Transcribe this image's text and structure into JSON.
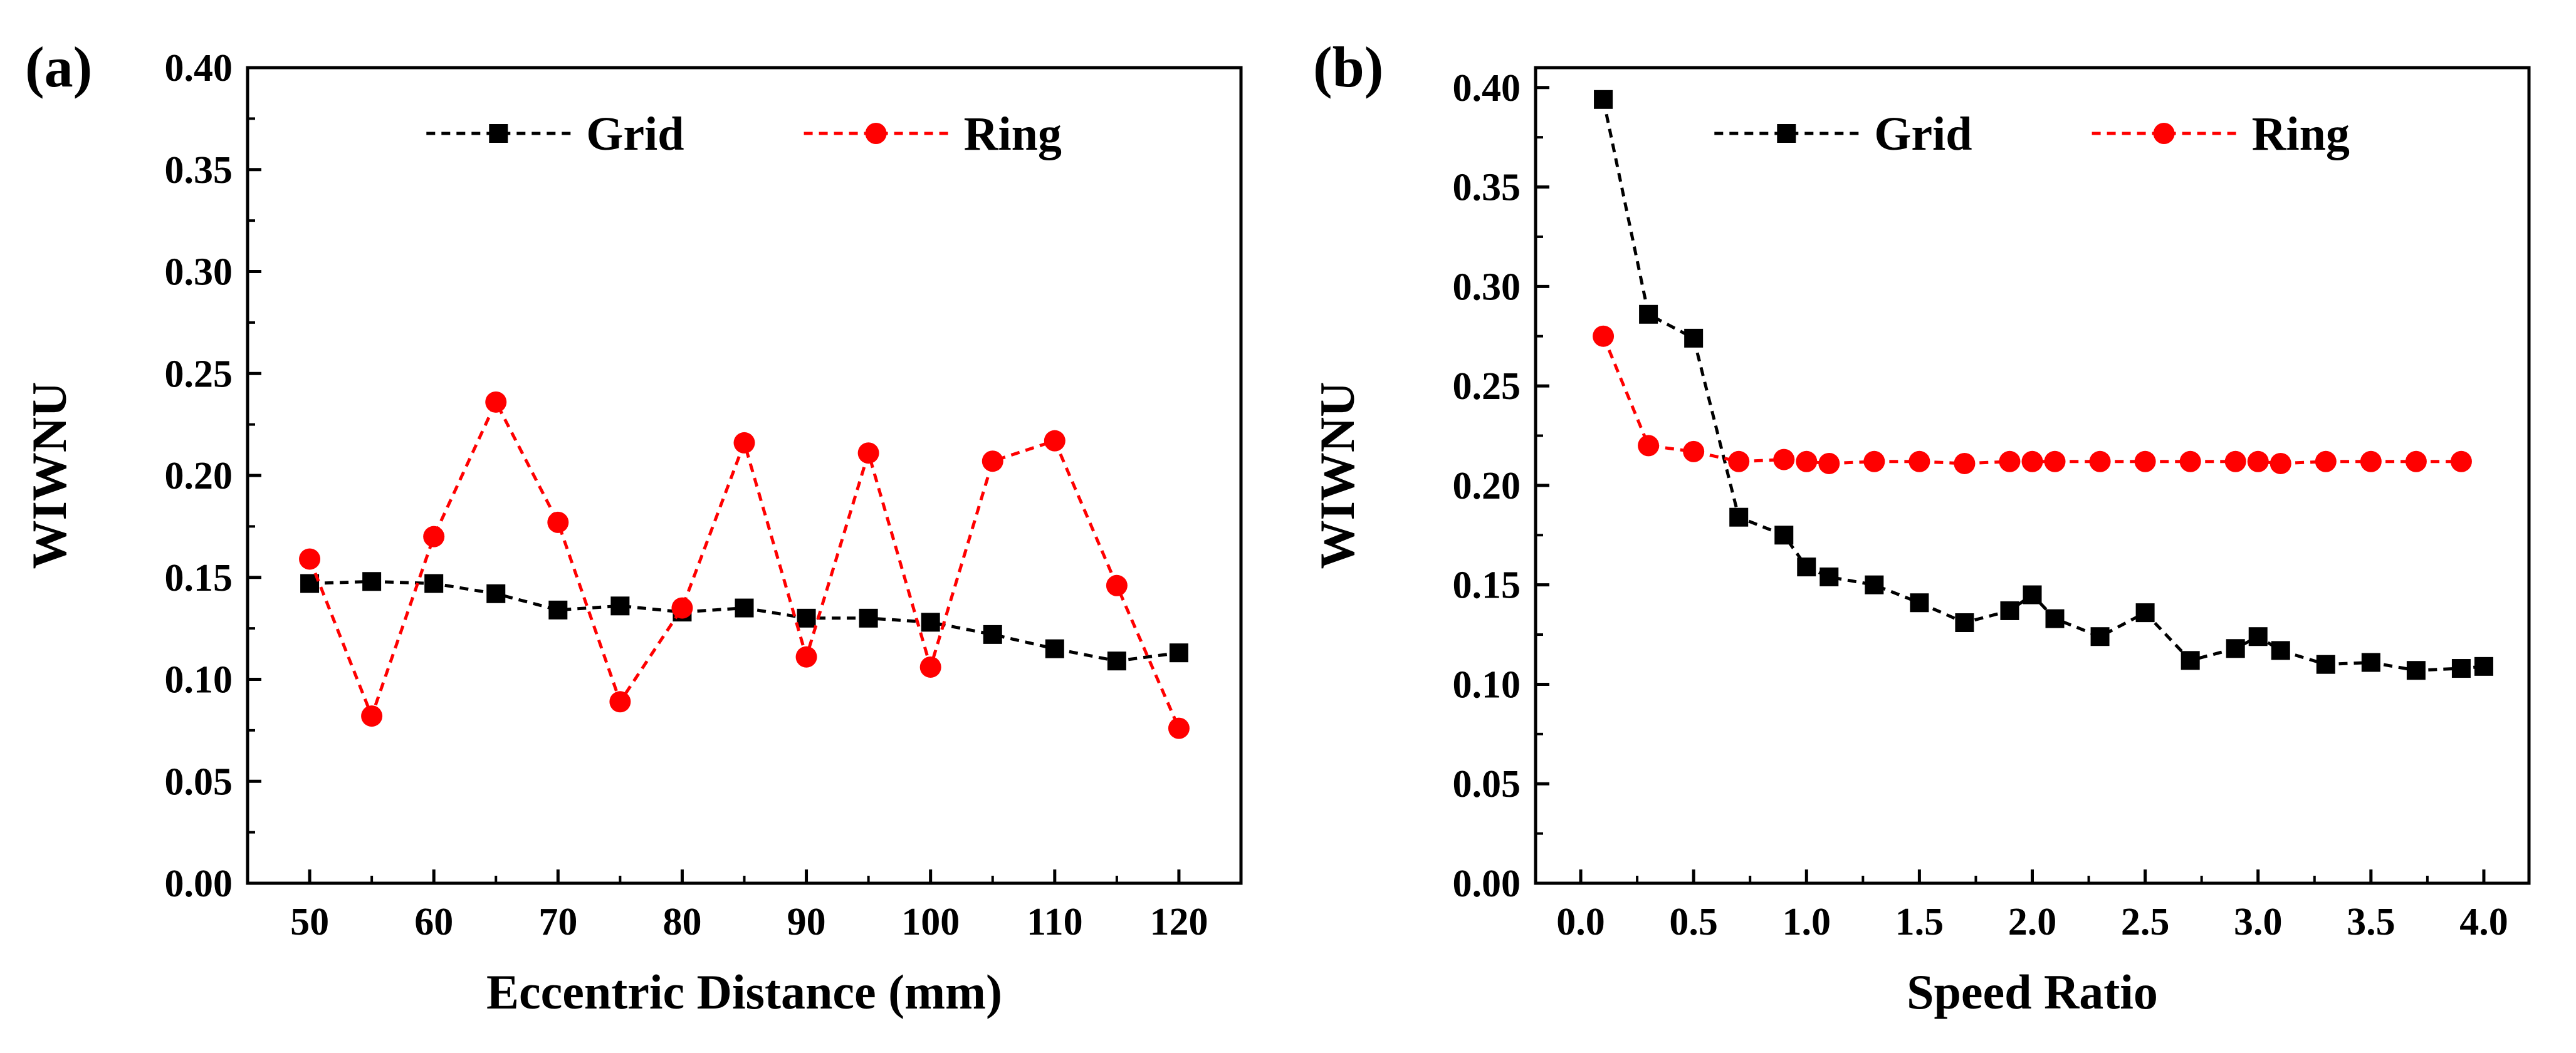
{
  "chart_data": [
    {
      "type": "line",
      "panel_label": "(a)",
      "xlabel": "Eccentric Distance (mm)",
      "ylabel": "WIWNU",
      "xlim": [
        45,
        125
      ],
      "ylim": [
        0.0,
        0.4
      ],
      "xticks": [
        50,
        60,
        70,
        80,
        90,
        100,
        110,
        120
      ],
      "xtick_labels": [
        "50",
        "60",
        "70",
        "80",
        "90",
        "100",
        "110",
        "120"
      ],
      "yticks": [
        0.0,
        0.05,
        0.1,
        0.15,
        0.2,
        0.25,
        0.3,
        0.35,
        0.4
      ],
      "ytick_labels": [
        "0.00",
        "0.05",
        "0.10",
        "0.15",
        "0.20",
        "0.25",
        "0.30",
        "0.35",
        "0.40"
      ],
      "legend_position": "top-center",
      "series": [
        {
          "name": "Grid",
          "color": "#000000",
          "marker": "square",
          "x": [
            50,
            55,
            60,
            65,
            70,
            75,
            80,
            85,
            90,
            95,
            100,
            105,
            110,
            115,
            120
          ],
          "y": [
            0.147,
            0.148,
            0.147,
            0.142,
            0.134,
            0.136,
            0.133,
            0.135,
            0.13,
            0.13,
            0.128,
            0.122,
            0.115,
            0.109,
            0.113
          ]
        },
        {
          "name": "Ring",
          "color": "#ff0000",
          "marker": "circle",
          "x": [
            50,
            55,
            60,
            65,
            70,
            75,
            80,
            85,
            90,
            95,
            100,
            105,
            110,
            115,
            120
          ],
          "y": [
            0.159,
            0.082,
            0.17,
            0.236,
            0.177,
            0.089,
            0.135,
            0.216,
            0.111,
            0.211,
            0.106,
            0.207,
            0.217,
            0.146,
            0.076
          ]
        }
      ]
    },
    {
      "type": "line",
      "panel_label": "(b)",
      "xlabel": "Speed Ratio",
      "ylabel": "WIWNU",
      "xlim": [
        -0.2,
        4.2
      ],
      "ylim": [
        0.0,
        0.41
      ],
      "xticks": [
        0.0,
        0.5,
        1.0,
        1.5,
        2.0,
        2.5,
        3.0,
        3.5,
        4.0
      ],
      "xtick_labels": [
        "0.0",
        "0.5",
        "1.0",
        "1.5",
        "2.0",
        "2.5",
        "3.0",
        "3.5",
        "4.0"
      ],
      "yticks": [
        0.0,
        0.05,
        0.1,
        0.15,
        0.2,
        0.25,
        0.3,
        0.35,
        0.4
      ],
      "ytick_labels": [
        "0.00",
        "0.05",
        "0.10",
        "0.15",
        "0.20",
        "0.25",
        "0.30",
        "0.35",
        "0.40"
      ],
      "legend_position": "top-center",
      "series": [
        {
          "name": "Grid",
          "color": "#000000",
          "marker": "square",
          "x": [
            0.1,
            0.3,
            0.5,
            0.7,
            0.9,
            1.0,
            1.1,
            1.3,
            1.5,
            1.7,
            1.9,
            2.0,
            2.1,
            2.3,
            2.5,
            2.7,
            2.9,
            3.0,
            3.1,
            3.3,
            3.5,
            3.7,
            3.9,
            4.0
          ],
          "y": [
            0.394,
            0.286,
            0.274,
            0.184,
            0.175,
            0.159,
            0.154,
            0.15,
            0.141,
            0.131,
            0.137,
            0.145,
            0.133,
            0.124,
            0.136,
            0.112,
            0.118,
            0.124,
            0.117,
            0.11,
            0.111,
            0.107,
            0.108,
            0.109
          ]
        },
        {
          "name": "Ring",
          "color": "#ff0000",
          "marker": "circle",
          "x": [
            0.1,
            0.3,
            0.5,
            0.7,
            0.9,
            1.0,
            1.1,
            1.3,
            1.5,
            1.7,
            1.9,
            2.0,
            2.1,
            2.3,
            2.5,
            2.7,
            2.9,
            3.0,
            3.1,
            3.3,
            3.5,
            3.7,
            3.9
          ],
          "y": [
            0.275,
            0.22,
            0.217,
            0.212,
            0.213,
            0.212,
            0.211,
            0.212,
            0.212,
            0.211,
            0.212,
            0.212,
            0.212,
            0.212,
            0.212,
            0.212,
            0.212,
            0.212,
            0.211,
            0.212,
            0.212,
            0.212,
            0.212
          ]
        }
      ]
    }
  ]
}
